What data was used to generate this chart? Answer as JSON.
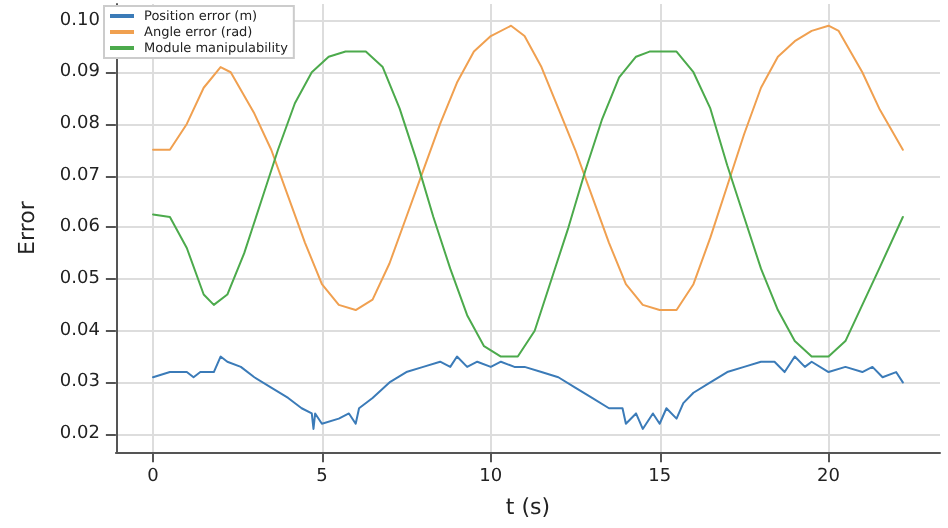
{
  "chart_data": {
    "type": "line",
    "xlabel": "t (s)",
    "ylabel": "Error",
    "xlim": [
      -1.1,
      23.3
    ],
    "ylim": [
      0.0165,
      0.1032
    ],
    "xticks": [
      0,
      5,
      10,
      15,
      20
    ],
    "yticks": [
      0.02,
      0.03,
      0.04,
      0.05,
      0.06,
      0.07,
      0.08,
      0.09,
      {
        "value": 0.1,
        "label": "0.10"
      }
    ],
    "grid": true,
    "legend": "top left",
    "marker": "none",
    "line_style": "solid",
    "series": [
      {
        "name": "Position error (m)",
        "color": "#3b7bb8",
        "x": [
          0,
          0.5,
          1,
          1.2,
          1.4,
          1.8,
          2,
          2.2,
          2.6,
          3,
          3.5,
          4,
          4.4,
          4.7,
          4.75,
          4.8,
          5,
          5.5,
          5.8,
          6,
          6.1,
          6.5,
          7,
          7.5,
          8,
          8.5,
          8.8,
          9,
          9.3,
          9.6,
          10,
          10.3,
          10.7,
          11,
          11.5,
          12,
          12.5,
          13,
          13.5,
          13.9,
          14,
          14.3,
          14.5,
          14.8,
          15,
          15.2,
          15.5,
          15.7,
          16,
          16.5,
          17,
          17.5,
          18,
          18.4,
          18.7,
          19,
          19.3,
          19.5,
          20,
          20.5,
          21,
          21.3,
          21.6,
          22,
          22.2
        ],
        "values": [
          0.031,
          0.032,
          0.032,
          0.031,
          0.032,
          0.032,
          0.035,
          0.034,
          0.033,
          0.031,
          0.029,
          0.027,
          0.025,
          0.024,
          0.021,
          0.024,
          0.022,
          0.023,
          0.024,
          0.022,
          0.025,
          0.027,
          0.03,
          0.032,
          0.033,
          0.034,
          0.033,
          0.035,
          0.033,
          0.034,
          0.033,
          0.034,
          0.033,
          0.033,
          0.032,
          0.031,
          0.029,
          0.027,
          0.025,
          0.025,
          0.022,
          0.024,
          0.021,
          0.024,
          0.022,
          0.025,
          0.023,
          0.026,
          0.028,
          0.03,
          0.032,
          0.033,
          0.034,
          0.034,
          0.032,
          0.035,
          0.033,
          0.034,
          0.032,
          0.033,
          0.032,
          0.033,
          0.031,
          0.032,
          0.03
        ]
      },
      {
        "name": "Angle error (rad)",
        "color": "#f0a050",
        "x": [
          0,
          0.5,
          1,
          1.5,
          2,
          2.3,
          3,
          3.5,
          4,
          4.5,
          5,
          5.5,
          6,
          6.5,
          7,
          7.5,
          8,
          8.5,
          9,
          9.5,
          10,
          10.6,
          11,
          11.5,
          12,
          12.5,
          13,
          13.5,
          14,
          14.5,
          15,
          15.5,
          16,
          16.5,
          17,
          17.5,
          18,
          18.5,
          19,
          19.5,
          20,
          20.3,
          21,
          21.5,
          22.2
        ],
        "values": [
          0.075,
          0.075,
          0.08,
          0.087,
          0.091,
          0.09,
          0.082,
          0.075,
          0.066,
          0.057,
          0.049,
          0.045,
          0.044,
          0.046,
          0.053,
          0.062,
          0.071,
          0.08,
          0.088,
          0.094,
          0.097,
          0.099,
          0.097,
          0.091,
          0.083,
          0.075,
          0.066,
          0.057,
          0.049,
          0.045,
          0.044,
          0.044,
          0.049,
          0.058,
          0.068,
          0.078,
          0.087,
          0.093,
          0.096,
          0.098,
          0.099,
          0.098,
          0.09,
          0.083,
          0.075
        ]
      },
      {
        "name": "Module manipulability",
        "color": "#4caa4c",
        "x": [
          0,
          0.5,
          1,
          1.5,
          1.8,
          2.2,
          2.7,
          3.2,
          3.7,
          4.2,
          4.7,
          5.2,
          5.7,
          6.3,
          6.8,
          7.3,
          7.8,
          8.3,
          8.8,
          9.3,
          9.8,
          10.3,
          10.8,
          11.3,
          11.8,
          12.3,
          12.8,
          13.3,
          13.8,
          14.3,
          14.7,
          15.5,
          16,
          16.5,
          17,
          17.5,
          18,
          18.5,
          19,
          19.5,
          20,
          20.5,
          21,
          21.5,
          22.2
        ],
        "values": [
          0.0625,
          0.062,
          0.056,
          0.047,
          0.045,
          0.047,
          0.055,
          0.065,
          0.075,
          0.084,
          0.09,
          0.093,
          0.094,
          0.094,
          0.091,
          0.083,
          0.073,
          0.062,
          0.052,
          0.043,
          0.037,
          0.035,
          0.035,
          0.04,
          0.05,
          0.06,
          0.071,
          0.081,
          0.089,
          0.093,
          0.094,
          0.094,
          0.09,
          0.083,
          0.072,
          0.062,
          0.052,
          0.044,
          0.038,
          0.035,
          0.035,
          0.038,
          0.045,
          0.052,
          0.062
        ]
      }
    ]
  }
}
